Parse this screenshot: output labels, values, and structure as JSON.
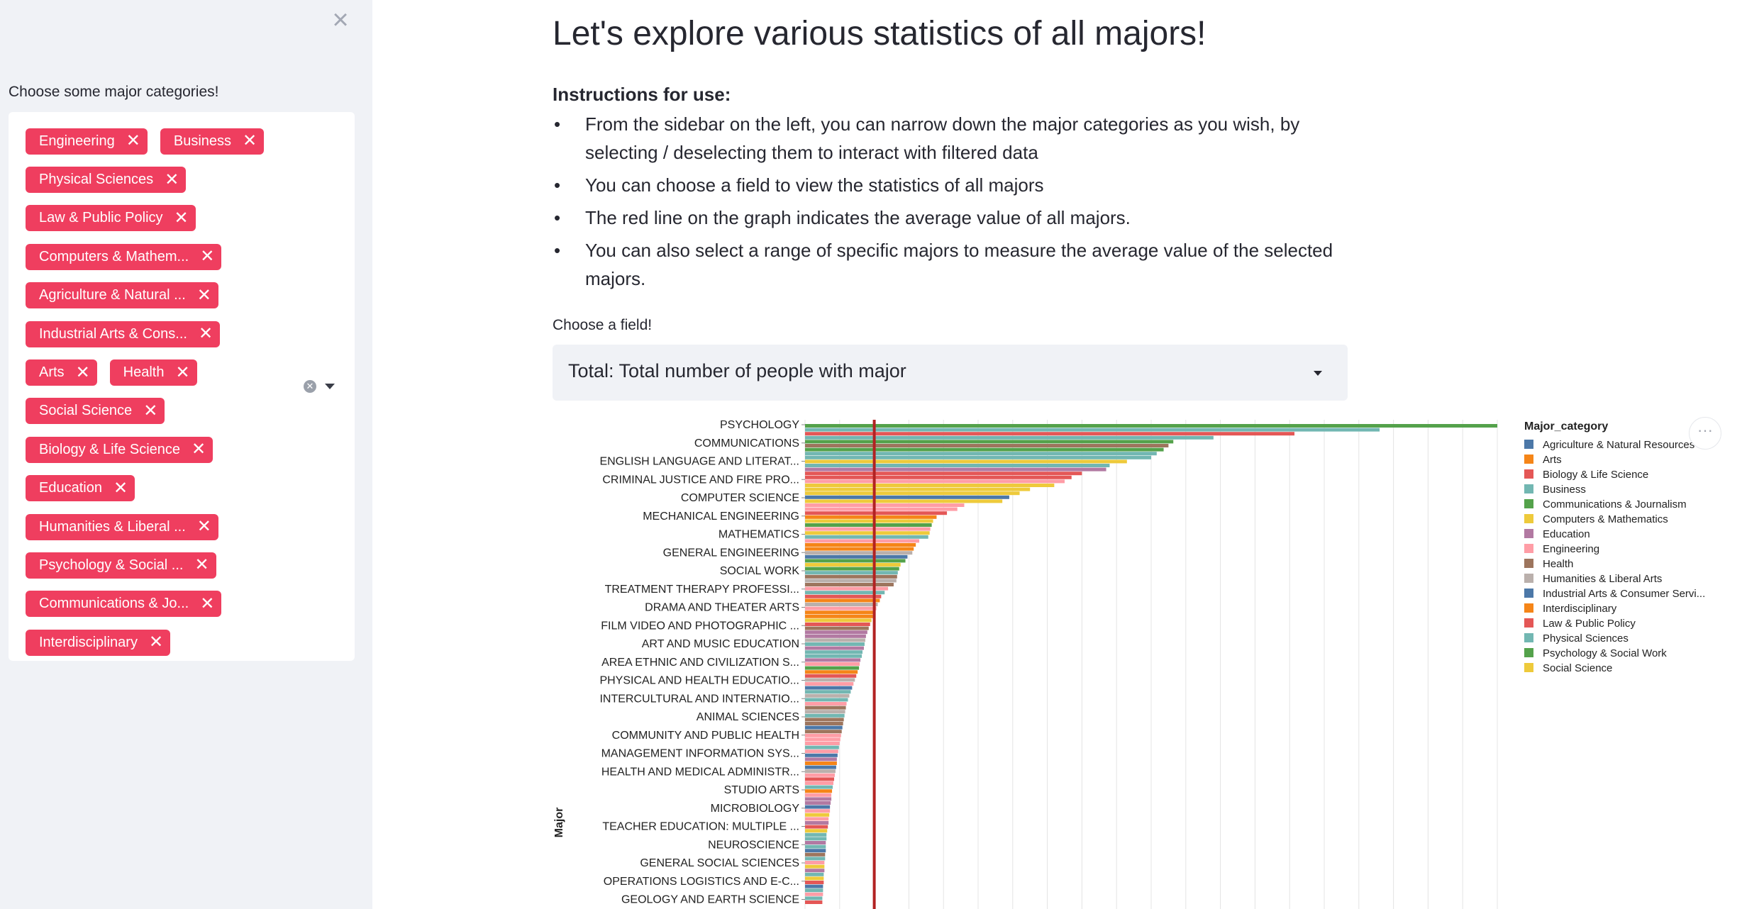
{
  "sidebar": {
    "close_icon": "close-icon",
    "label": "Choose some major categories!",
    "tag_rows": [
      [
        "Engineering",
        "Business"
      ],
      [
        "Physical Sciences"
      ],
      [
        "Law & Public Policy"
      ],
      [
        "Computers & Mathem..."
      ],
      [
        "Agriculture & Natural ..."
      ],
      [
        "Industrial Arts & Cons..."
      ],
      [
        "Arts",
        "Health"
      ],
      [
        "Social Science"
      ],
      [
        "Biology & Life Science"
      ],
      [
        "Education"
      ],
      [
        "Humanities & Liberal ..."
      ],
      [
        "Psychology & Social ..."
      ],
      [
        "Communications & Jo..."
      ],
      [
        "Interdisciplinary"
      ]
    ],
    "tag_remove_glyph": "✕",
    "clear_glyph": "✕"
  },
  "main": {
    "title": "Let's explore various statistics of all majors!",
    "instructions_title": "Instructions for use:",
    "instructions": [
      "From the sidebar on the left, you can narrow down the major categories as you wish, by selecting / deselecting them to interact with filtered data",
      "You can choose a field to view the statistics of all majors",
      "The red line on the graph indicates the average value of all majors.",
      "You can also select a range of specific majors to measure the average value of the selected majors."
    ],
    "bullet": "•",
    "field_label": "Choose a field!",
    "field_value": "Total: Total number of people with major",
    "more_glyph": "···"
  },
  "chart_data": {
    "type": "bar",
    "orientation": "horizontal",
    "ylabel": "Major",
    "legend_title": "Major_category",
    "legend_position": "right",
    "grid": true,
    "average_line_color": "#b22222",
    "average_value_fraction_of_max": 0.1,
    "x_max_fraction_axis": 1.0,
    "colors": {
      "Agriculture & Natural Resources": "#4c78a8",
      "Arts": "#f58518",
      "Biology & Life Science": "#e45756",
      "Business": "#72b7b2",
      "Communications & Journalism": "#54a24b",
      "Computers & Mathematics": "#eeca3b",
      "Education": "#b279a2",
      "Engineering": "#ff9da6",
      "Health": "#9d755d",
      "Humanities & Liberal Arts": "#bab0ac",
      "Industrial Arts & Consumer Servi...": "#4c78a8",
      "Interdisciplinary": "#f58518",
      "Law & Public Policy": "#e45756",
      "Physical Sciences": "#72b7b2",
      "Psychology & Social Work": "#54a24b",
      "Social Science": "#eeca3b"
    },
    "legend": [
      "Agriculture & Natural Resources",
      "Arts",
      "Biology & Life Science",
      "Business",
      "Communications & Journalism",
      "Computers & Mathematics",
      "Education",
      "Engineering",
      "Health",
      "Humanities & Liberal Arts",
      "Industrial Arts & Consumer Servi...",
      "Interdisciplinary",
      "Law & Public Policy",
      "Physical Sciences",
      "Psychology & Social Work",
      "Social Science"
    ],
    "tick_labels": [
      "PSYCHOLOGY",
      "COMMUNICATIONS",
      "ENGLISH LANGUAGE AND LITERAT...",
      "CRIMINAL JUSTICE AND FIRE PRO...",
      "COMPUTER SCIENCE",
      "MECHANICAL ENGINEERING",
      "MATHEMATICS",
      "GENERAL ENGINEERING",
      "SOCIAL WORK",
      "TREATMENT THERAPY PROFESSI...",
      "DRAMA AND THEATER ARTS",
      "FILM VIDEO AND PHOTOGRAPHIC ...",
      "ART AND MUSIC EDUCATION",
      "AREA ETHNIC AND CIVILIZATION S...",
      "PHYSICAL AND HEALTH EDUCATIO...",
      "INTERCULTURAL AND INTERNATIO...",
      "ANIMAL SCIENCES",
      "COMMUNITY AND PUBLIC HEALTH",
      "MANAGEMENT INFORMATION SYS...",
      "HEALTH AND MEDICAL ADMINISTR...",
      "STUDIO ARTS",
      "MICROBIOLOGY",
      "TEACHER EDUCATION: MULTIPLE ...",
      "NEUROSCIENCE",
      "GENERAL SOCIAL SCIENCES",
      "OPERATIONS LOGISTICS AND E-C...",
      "GEOLOGY AND EARTH SCIENCE"
    ],
    "bars_relative": [
      {
        "v": 1.0,
        "c": "Psychology & Social Work"
      },
      {
        "v": 0.83,
        "c": "Physical Sciences"
      },
      {
        "v": 0.707,
        "c": "Law & Public Policy"
      },
      {
        "v": 0.59,
        "c": "Business"
      },
      {
        "v": 0.532,
        "c": "Communications & Journalism"
      },
      {
        "v": 0.525,
        "c": "Health"
      },
      {
        "v": 0.518,
        "c": "Communications & Journalism"
      },
      {
        "v": 0.508,
        "c": "Business"
      },
      {
        "v": 0.5,
        "c": "Business"
      },
      {
        "v": 0.465,
        "c": "Computers & Mathematics"
      },
      {
        "v": 0.44,
        "c": "Business"
      },
      {
        "v": 0.435,
        "c": "Education"
      },
      {
        "v": 0.4,
        "c": "Biology & Life Science"
      },
      {
        "v": 0.385,
        "c": "Law & Public Policy"
      },
      {
        "v": 0.375,
        "c": "Engineering"
      },
      {
        "v": 0.36,
        "c": "Computers & Mathematics"
      },
      {
        "v": 0.325,
        "c": "Computers & Mathematics"
      },
      {
        "v": 0.31,
        "c": "Computers & Mathematics"
      },
      {
        "v": 0.295,
        "c": "Industrial Arts & Consumer Servi..."
      },
      {
        "v": 0.285,
        "c": "Computers & Mathematics"
      },
      {
        "v": 0.23,
        "c": "Engineering"
      },
      {
        "v": 0.22,
        "c": "Engineering"
      },
      {
        "v": 0.205,
        "c": "Law & Public Policy"
      },
      {
        "v": 0.19,
        "c": "Arts"
      },
      {
        "v": 0.185,
        "c": "Computers & Mathematics"
      },
      {
        "v": 0.183,
        "c": "Psychology & Social Work"
      },
      {
        "v": 0.181,
        "c": "Engineering"
      },
      {
        "v": 0.18,
        "c": "Computers & Mathematics"
      },
      {
        "v": 0.178,
        "c": "Business"
      },
      {
        "v": 0.165,
        "c": "Engineering"
      },
      {
        "v": 0.16,
        "c": "Arts"
      },
      {
        "v": 0.157,
        "c": "Arts"
      },
      {
        "v": 0.155,
        "c": "Humanities & Liberal Arts"
      },
      {
        "v": 0.148,
        "c": "Agriculture & Natural Resources"
      },
      {
        "v": 0.145,
        "c": "Psychology & Social Work"
      },
      {
        "v": 0.138,
        "c": "Computers & Mathematics"
      },
      {
        "v": 0.136,
        "c": "Psychology & Social Work"
      },
      {
        "v": 0.134,
        "c": "Business"
      },
      {
        "v": 0.133,
        "c": "Health"
      },
      {
        "v": 0.132,
        "c": "Humanities & Liberal Arts"
      },
      {
        "v": 0.128,
        "c": "Health"
      },
      {
        "v": 0.12,
        "c": "Engineering"
      },
      {
        "v": 0.115,
        "c": "Business"
      },
      {
        "v": 0.11,
        "c": "Biology & Life Science"
      },
      {
        "v": 0.108,
        "c": "Arts"
      },
      {
        "v": 0.105,
        "c": "Humanities & Liberal Arts"
      },
      {
        "v": 0.103,
        "c": "Engineering"
      },
      {
        "v": 0.1,
        "c": "Arts"
      },
      {
        "v": 0.098,
        "c": "Arts"
      },
      {
        "v": 0.096,
        "c": "Social Science"
      },
      {
        "v": 0.094,
        "c": "Biology & Life Science"
      },
      {
        "v": 0.092,
        "c": "Health"
      },
      {
        "v": 0.09,
        "c": "Education"
      },
      {
        "v": 0.088,
        "c": "Education"
      },
      {
        "v": 0.087,
        "c": "Humanities & Liberal Arts"
      },
      {
        "v": 0.086,
        "c": "Physical Sciences"
      },
      {
        "v": 0.085,
        "c": "Education"
      },
      {
        "v": 0.083,
        "c": "Physical Sciences"
      },
      {
        "v": 0.082,
        "c": "Business"
      },
      {
        "v": 0.08,
        "c": "Education"
      },
      {
        "v": 0.079,
        "c": "Engineering"
      },
      {
        "v": 0.078,
        "c": "Psychology & Social Work"
      },
      {
        "v": 0.076,
        "c": "Arts"
      },
      {
        "v": 0.074,
        "c": "Biology & Life Science"
      },
      {
        "v": 0.072,
        "c": "Humanities & Liberal Arts"
      },
      {
        "v": 0.07,
        "c": "Engineering"
      },
      {
        "v": 0.068,
        "c": "Agriculture & Natural Resources"
      },
      {
        "v": 0.066,
        "c": "Business"
      },
      {
        "v": 0.064,
        "c": "Humanities & Liberal Arts"
      },
      {
        "v": 0.062,
        "c": "Business"
      },
      {
        "v": 0.06,
        "c": "Engineering"
      },
      {
        "v": 0.059,
        "c": "Health"
      },
      {
        "v": 0.058,
        "c": "Humanities & Liberal Arts"
      },
      {
        "v": 0.057,
        "c": "Business"
      },
      {
        "v": 0.056,
        "c": "Health"
      },
      {
        "v": 0.055,
        "c": "Health"
      },
      {
        "v": 0.054,
        "c": "Industrial Arts & Consumer Servi..."
      },
      {
        "v": 0.053,
        "c": "Health"
      },
      {
        "v": 0.052,
        "c": "Engineering"
      },
      {
        "v": 0.051,
        "c": "Engineering"
      },
      {
        "v": 0.05,
        "c": "Engineering"
      },
      {
        "v": 0.049,
        "c": "Physical Sciences"
      },
      {
        "v": 0.048,
        "c": "Engineering"
      },
      {
        "v": 0.047,
        "c": "Agriculture & Natural Resources"
      },
      {
        "v": 0.046,
        "c": "Education"
      },
      {
        "v": 0.046,
        "c": "Arts"
      },
      {
        "v": 0.045,
        "c": "Agriculture & Natural Resources"
      },
      {
        "v": 0.044,
        "c": "Humanities & Liberal Arts"
      },
      {
        "v": 0.043,
        "c": "Engineering"
      },
      {
        "v": 0.042,
        "c": "Biology & Life Science"
      },
      {
        "v": 0.041,
        "c": "Engineering"
      },
      {
        "v": 0.04,
        "c": "Business"
      },
      {
        "v": 0.039,
        "c": "Arts"
      },
      {
        "v": 0.038,
        "c": "Engineering"
      },
      {
        "v": 0.038,
        "c": "Education"
      },
      {
        "v": 0.037,
        "c": "Education"
      },
      {
        "v": 0.036,
        "c": "Agriculture & Natural Resources"
      },
      {
        "v": 0.036,
        "c": "Engineering"
      },
      {
        "v": 0.035,
        "c": "Social Science"
      },
      {
        "v": 0.034,
        "c": "Engineering"
      },
      {
        "v": 0.034,
        "c": "Education"
      },
      {
        "v": 0.033,
        "c": "Biology & Life Science"
      },
      {
        "v": 0.032,
        "c": "Computers & Mathematics"
      },
      {
        "v": 0.031,
        "c": "Physical Sciences"
      },
      {
        "v": 0.031,
        "c": "Business"
      },
      {
        "v": 0.03,
        "c": "Education"
      },
      {
        "v": 0.03,
        "c": "Physical Sciences"
      },
      {
        "v": 0.03,
        "c": "Agriculture & Natural Resources"
      },
      {
        "v": 0.029,
        "c": "Health"
      },
      {
        "v": 0.029,
        "c": "Physical Sciences"
      },
      {
        "v": 0.028,
        "c": "Engineering"
      },
      {
        "v": 0.028,
        "c": "Social Science"
      },
      {
        "v": 0.028,
        "c": "Education"
      },
      {
        "v": 0.027,
        "c": "Physical Sciences"
      },
      {
        "v": 0.027,
        "c": "Computers & Mathematics"
      },
      {
        "v": 0.027,
        "c": "Biology & Life Science"
      },
      {
        "v": 0.026,
        "c": "Industrial Arts & Consumer Servi..."
      },
      {
        "v": 0.026,
        "c": "Business"
      },
      {
        "v": 0.026,
        "c": "Engineering"
      },
      {
        "v": 0.025,
        "c": "Business"
      },
      {
        "v": 0.025,
        "c": "Biology & Life Science"
      }
    ]
  }
}
